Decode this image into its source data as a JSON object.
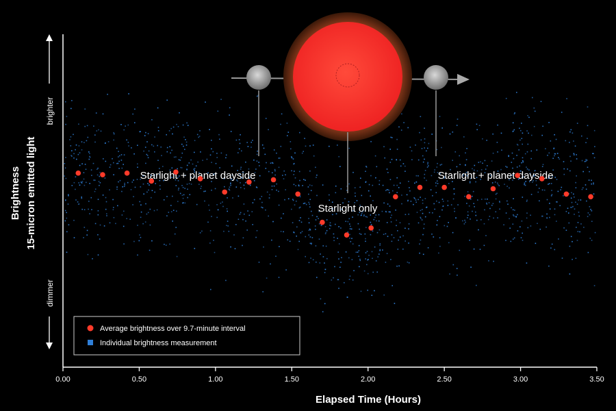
{
  "chart_data": {
    "type": "scatter",
    "xlabel": "Elapsed Time (Hours)",
    "ylabel_line1": "Brightness",
    "ylabel_line2": "15-micron emitted light",
    "y_top_label": "brighter",
    "y_bottom_label": "dimmer",
    "xlim": [
      0,
      3.5
    ],
    "ylim": [
      0,
      1
    ],
    "x_ticks": [
      0,
      0.5,
      1.0,
      1.5,
      2.0,
      2.5,
      3.0,
      3.5
    ],
    "x_tick_labels": [
      "0.00",
      "0.50",
      "1.00",
      "1.50",
      "2.00",
      "2.50",
      "3.00",
      "3.50"
    ],
    "grid": false,
    "legend_position": "bottom-left",
    "series": [
      {
        "name": "Average brightness over 9.7-minute interval",
        "color": "#ff3b2a",
        "x": [
          0.1,
          0.26,
          0.42,
          0.58,
          0.74,
          0.9,
          1.06,
          1.22,
          1.38,
          1.54,
          1.7,
          1.86,
          2.02,
          2.18,
          2.34,
          2.5,
          2.66,
          2.82,
          2.98,
          3.14,
          3.3,
          3.46
        ],
        "y": [
          0.583,
          0.578,
          0.583,
          0.559,
          0.586,
          0.566,
          0.526,
          0.556,
          0.563,
          0.52,
          0.435,
          0.397,
          0.418,
          0.512,
          0.54,
          0.54,
          0.512,
          0.536,
          0.576,
          0.566,
          0.52,
          0.512
        ]
      },
      {
        "name": "Individual brightness measurement",
        "color": "#2f7fd8"
      }
    ],
    "annotations": [
      {
        "text": "Starlight + planet dayside",
        "x": 0.97,
        "y": 0.66
      },
      {
        "text": "Starlight only",
        "x": 1.81,
        "y": 0.55
      },
      {
        "text": "Starlight + planet dayside",
        "x": 3.05,
        "y": 0.66
      }
    ]
  }
}
